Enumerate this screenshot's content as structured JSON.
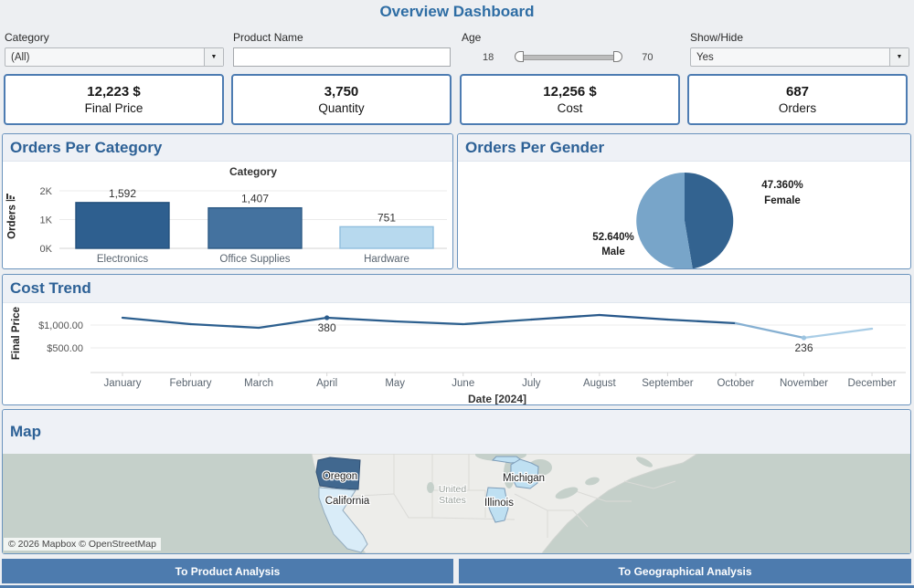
{
  "title": "Overview Dashboard",
  "filters": {
    "category": {
      "label": "Category",
      "value": "(All)"
    },
    "product_name": {
      "label": "Product Name",
      "value": ""
    },
    "age": {
      "label": "Age",
      "min": "18",
      "max": "70"
    },
    "show_hide": {
      "label": "Show/Hide",
      "value": "Yes"
    }
  },
  "icons": {
    "dropdown_arrow": "▼"
  },
  "kpis": [
    {
      "value": "12,223 $",
      "label": "Final Price"
    },
    {
      "value": "3,750",
      "label": "Quantity"
    },
    {
      "value": "12,256 $",
      "label": "Cost"
    },
    {
      "value": "687",
      "label": "Orders"
    }
  ],
  "chart_data": [
    {
      "type": "bar",
      "title": "Orders Per Category",
      "xlabel": "Category",
      "ylabel": "Orders",
      "categories": [
        "Electronics",
        "Office Supplies",
        "Hardware"
      ],
      "values": [
        1592,
        1407,
        751
      ],
      "value_labels": [
        "1,592",
        "1,407",
        "751"
      ],
      "yticks": [
        "0K",
        "1K",
        "2K"
      ],
      "ylim": [
        0,
        2000
      ],
      "bar_colors": [
        "#2e5f8f",
        "#44729f",
        "#b7d9ee"
      ],
      "bar_strokes": [
        "#24517c",
        "#2d5a85",
        "#90bede"
      ]
    },
    {
      "type": "pie",
      "title": "Orders Per Gender",
      "slices": [
        {
          "label": "Female",
          "value": 47.36,
          "pct_label": "47.360%",
          "color": "#336390"
        },
        {
          "label": "Male",
          "value": 52.64,
          "pct_label": "52.640%",
          "color": "#78a5c9"
        }
      ]
    },
    {
      "type": "line",
      "title": "Cost Trend",
      "xlabel": "Date [2024]",
      "ylabel": "Final Price",
      "x": [
        "January",
        "February",
        "March",
        "April",
        "May",
        "June",
        "July",
        "August",
        "September",
        "October",
        "November",
        "December"
      ],
      "values": [
        1160,
        1020,
        940,
        1160,
        1080,
        1020,
        1120,
        1220,
        1120,
        1040,
        720,
        920
      ],
      "yticks": [
        {
          "label": "$1,000.00",
          "value": 1000
        },
        {
          "label": "$500.00",
          "value": 500
        }
      ],
      "ylim": [
        0,
        1500
      ],
      "annotations": [
        {
          "month": "April",
          "text": "380",
          "marker_color": "#2a5c8c"
        },
        {
          "month": "November",
          "text": "236",
          "marker_color": "#9cc4e0"
        }
      ],
      "segment_colors": [
        "#2c5f8f",
        "#2c5f8f",
        "#2d608f",
        "#2a5c8c",
        "#2d608f",
        "#30638f",
        "#29598a",
        "#26568a",
        "#2a5c8c",
        "#86b0d2",
        "#a9cde6"
      ]
    }
  ],
  "map": {
    "title": "Map",
    "country_label_line1": "United",
    "country_label_line2": "States",
    "states": [
      {
        "name": "Oregon",
        "color": "#41688f"
      },
      {
        "name": "California",
        "color": "#d9ecf8"
      },
      {
        "name": "Michigan",
        "color": "#bfe0f2"
      },
      {
        "name": "Illinois",
        "color": "#bfe0f2"
      }
    ],
    "ocean_color": "#c5d0ca",
    "land_color": "#ededea",
    "attribution": "© 2026 Mapbox © OpenStreetMap"
  },
  "nav": {
    "to_product": "To Product Analysis",
    "to_geo": "To Geographical Analysis"
  },
  "colors": {
    "accent": "#2e6da4",
    "panel_border": "#6a93bd",
    "button_bg": "#4d7bae"
  }
}
